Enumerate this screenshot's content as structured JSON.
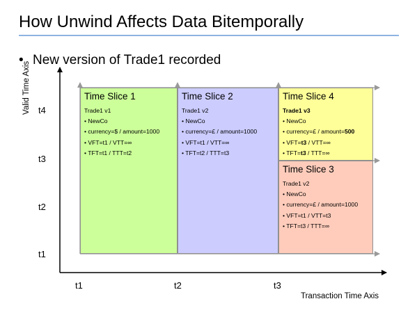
{
  "title": "How Unwind Affects Data Bitemporally",
  "bullet": "New version of Trade1 recorded",
  "axes": {
    "y_label": "Valid Time Axis",
    "x_label": "Transaction Time Axis",
    "y_ticks": [
      "t4",
      "t3",
      "t2",
      "t1"
    ],
    "x_ticks": [
      "t1",
      "t2",
      "t3"
    ]
  },
  "slices": {
    "s1": {
      "title": "Time Slice 1",
      "trade": "Trade1 v1",
      "company": "• NewCo",
      "currency": "• currency=$ / amount=1000",
      "vft": "• VFT=t1 / VTT=∞",
      "tft": "• TFT=t1 / TTT=t2"
    },
    "s2": {
      "title": "Time Slice 2",
      "trade": "Trade1 v2",
      "company": "• NewCo",
      "currency": "• currency=£ / amount=1000",
      "vft": "• VFT=t1 / VTT=∞",
      "tft": "• TFT=t2 / TTT=t3"
    },
    "s4": {
      "title": "Time Slice 4",
      "trade": "Trade1 v3",
      "company": "• NewCo",
      "currency_prefix": "• currency=£ / amount=",
      "currency_value": "500",
      "vft_prefix": "• VFT=",
      "vft_value": "t3",
      "vft_suffix": " / VTT=∞",
      "tft_prefix": "• TFT=",
      "tft_value": "t3",
      "tft_suffix": " / TTT=∞"
    },
    "s3": {
      "title": "Time Slice 3",
      "trade": "Trade1 v2",
      "company": "• NewCo",
      "currency": "• currency=£ / amount=1000",
      "vft": "• VFT=t1 / VTT=t3",
      "tft": "• TFT=t3 / TTT=∞"
    }
  },
  "colors": {
    "slice1": "#ccff99",
    "slice2": "#ccccff",
    "slice3": "#ffccbb",
    "slice4": "#ffff99",
    "title_rule": "#8db4e2"
  }
}
